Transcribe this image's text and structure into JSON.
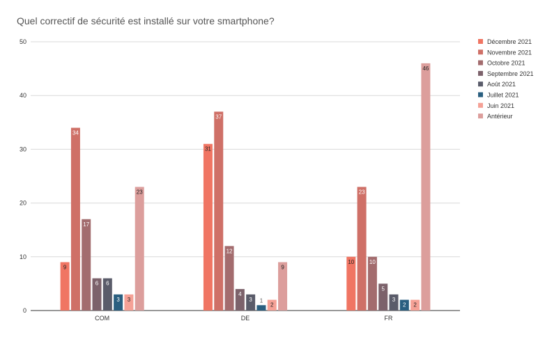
{
  "chart_data": {
    "type": "bar",
    "title": "Quel correctif de sécurité est installé sur votre smartphone?",
    "categories": [
      "COM",
      "DE",
      "FR"
    ],
    "ylim": [
      0,
      50
    ],
    "yticks": [
      0,
      10,
      20,
      30,
      40,
      50
    ],
    "grid": true,
    "legend_position": "right",
    "series": [
      {
        "name": "Décembre 2021",
        "color": "#f07563",
        "values": [
          9,
          31,
          10
        ]
      },
      {
        "name": "Novembre 2021",
        "color": "#cf7067",
        "values": [
          34,
          37,
          23
        ]
      },
      {
        "name": "Octobre 2021",
        "color": "#a36c6e",
        "values": [
          17,
          12,
          10
        ]
      },
      {
        "name": "Septembre 2021",
        "color": "#7c626b",
        "values": [
          6,
          4,
          5
        ]
      },
      {
        "name": "Août 2021",
        "color": "#5a5c6a",
        "values": [
          6,
          3,
          3
        ]
      },
      {
        "name": "Juillet 2021",
        "color": "#2a5f80",
        "values": [
          3,
          1,
          2
        ]
      },
      {
        "name": "Juin 2021",
        "color": "#f5a196",
        "values": [
          3,
          2,
          2
        ]
      },
      {
        "name": "Antérieur",
        "color": "#dc9e9c",
        "values": [
          23,
          9,
          46
        ]
      }
    ]
  }
}
